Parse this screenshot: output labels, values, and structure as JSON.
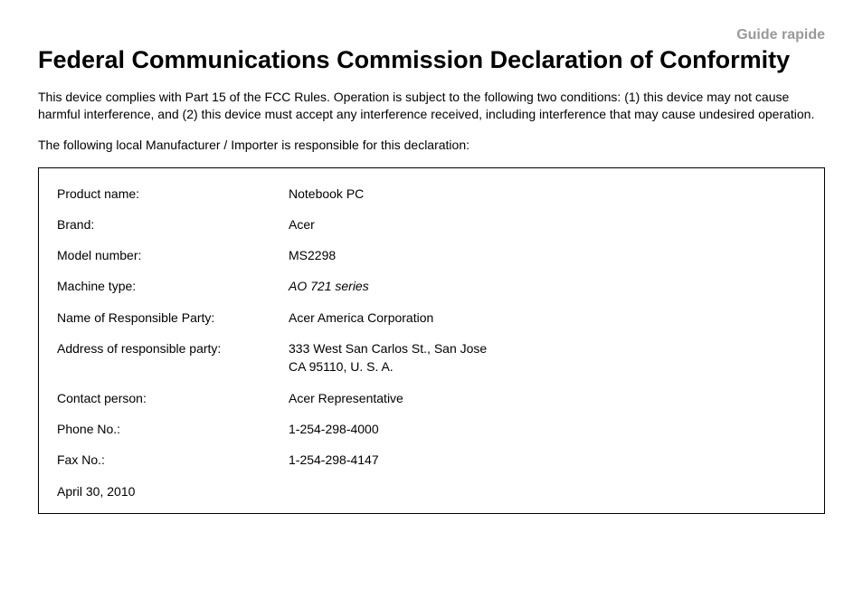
{
  "header_label": "Guide rapide",
  "title": "Federal Communications Commission Declaration of Conformity",
  "para1": "This device complies with Part 15 of the FCC Rules. Operation is subject to the following two conditions: (1) this device may not cause harmful interference, and (2) this device must accept any interference received, including interference that may cause undesired operation.",
  "para2": "The following local Manufacturer / Importer is responsible for this declaration:",
  "rows": {
    "product_name": {
      "label": "Product name:",
      "value": "Notebook PC"
    },
    "brand": {
      "label": "Brand:",
      "value": "Acer"
    },
    "model_number": {
      "label": "Model number:",
      "value": "MS2298"
    },
    "machine_type": {
      "label": "Machine type:",
      "value": "AO 721 series"
    },
    "responsible_party": {
      "label": "Name of Responsible Party:",
      "value": "Acer America Corporation"
    },
    "address": {
      "label": "Address of responsible party:",
      "line1": "333 West San Carlos St., San Jose",
      "line2": "CA 95110, U. S. A."
    },
    "contact_person": {
      "label": "Contact person:",
      "value": "Acer Representative"
    },
    "phone": {
      "label": "Phone No.:",
      "value": "1-254-298-4000"
    },
    "fax": {
      "label": "Fax No.:",
      "value": "1-254-298-4147"
    },
    "date": {
      "value": "April 30, 2010"
    }
  },
  "colors": {
    "text": "#000000",
    "muted": "#999999",
    "border": "#000000",
    "background": "#ffffff"
  }
}
